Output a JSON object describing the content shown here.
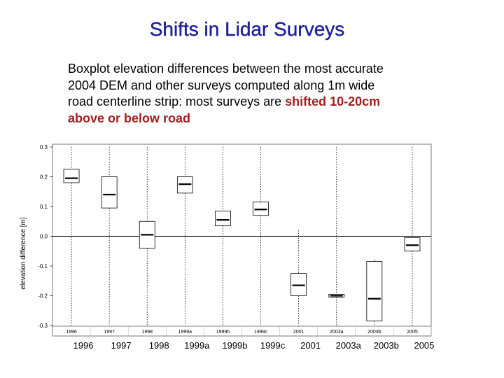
{
  "slide": {
    "title": "Shifts in Lidar Surveys",
    "caption_plain": "Boxplot elevation differences between the most accurate 2004 DEM and other surveys computed along 1m wide road centerline strip: most surveys are ",
    "caption_highlight": "shifted 10-20cm above or below road"
  },
  "colors": {
    "title": "#1f1f99",
    "highlight": "#a02020",
    "box": "#000000",
    "frame": "#555555"
  },
  "chart_data": {
    "type": "boxplot",
    "ylabel": "elevation difference [m]",
    "ylim": [
      -0.3,
      0.3
    ],
    "yticks": [
      0.3,
      0.2,
      0.1,
      0.0,
      -0.1,
      -0.2,
      -0.3
    ],
    "ytick_labels": [
      "0.3",
      "0.2",
      "0.1",
      "0.0",
      "-0.1",
      "-0.2",
      "-0.3"
    ],
    "zero_line": true,
    "axis_tick_labels": [
      "1996",
      "1997",
      "1998",
      "1999a",
      "1999b",
      "1999c",
      "2001",
      "2003a",
      "2003b",
      "2005"
    ],
    "bottom_labels": [
      "1996",
      "1997",
      "1998",
      "1999a",
      "1999b",
      "1999c",
      "2001",
      "2003a",
      "2003b",
      "2005"
    ],
    "series": [
      {
        "label": "1996",
        "whisker_low": -0.3,
        "q1": 0.18,
        "median": 0.195,
        "q3": 0.225,
        "whisker_high": 0.3
      },
      {
        "label": "1997",
        "whisker_low": -0.3,
        "q1": 0.095,
        "median": 0.14,
        "q3": 0.2,
        "whisker_high": 0.3
      },
      {
        "label": "1998",
        "whisker_low": -0.3,
        "q1": -0.04,
        "median": 0.005,
        "q3": 0.05,
        "whisker_high": 0.3
      },
      {
        "label": "1999a",
        "whisker_low": -0.3,
        "q1": 0.145,
        "median": 0.175,
        "q3": 0.2,
        "whisker_high": 0.3
      },
      {
        "label": "1999b",
        "whisker_low": -0.3,
        "q1": 0.035,
        "median": 0.055,
        "q3": 0.085,
        "whisker_high": 0.3
      },
      {
        "label": "1999c",
        "whisker_low": -0.3,
        "q1": 0.07,
        "median": 0.09,
        "q3": 0.115,
        "whisker_high": 0.3
      },
      {
        "label": "2001",
        "whisker_low": -0.3,
        "q1": -0.2,
        "median": -0.165,
        "q3": -0.125,
        "whisker_high": 0.02
      },
      {
        "label": "2003a",
        "whisker_low": -0.3,
        "q1": -0.205,
        "median": -0.2,
        "q3": -0.195,
        "whisker_high": 0.3
      },
      {
        "label": "2003b",
        "whisker_low": -0.3,
        "q1": -0.285,
        "median": -0.21,
        "q3": -0.085,
        "whisker_high": -0.08
      },
      {
        "label": "2005",
        "whisker_low": -0.3,
        "q1": -0.05,
        "median": -0.03,
        "q3": -0.005,
        "whisker_high": 0.3
      }
    ]
  }
}
